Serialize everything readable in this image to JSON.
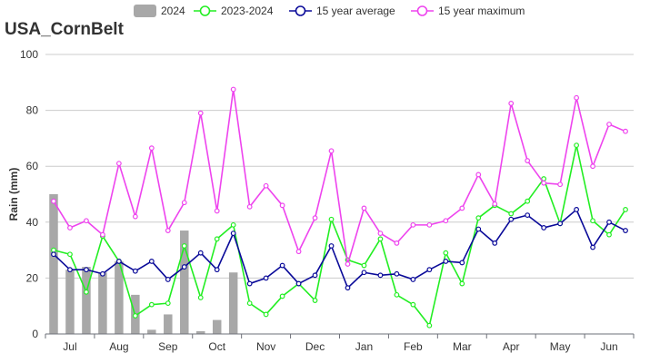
{
  "chart_data": {
    "type": "bar+line",
    "title": "USA_CornBelt",
    "ylabel": "Rain (mm)",
    "xlabel": "",
    "ylim": [
      0,
      100
    ],
    "yticks": [
      0,
      20,
      40,
      60,
      80,
      100
    ],
    "grid": true,
    "legend_position": "top",
    "month_labels": [
      "Jul",
      "Aug",
      "Sep",
      "Oct",
      "Nov",
      "Dec",
      "Jan",
      "Feb",
      "Mar",
      "Apr",
      "May",
      "Jun"
    ],
    "bar_series": {
      "name": "2024",
      "color": "#a8a8a8",
      "values": [
        50,
        23,
        24,
        22,
        26,
        14,
        1.5,
        7,
        37,
        1,
        5,
        22
      ]
    },
    "series": [
      {
        "name": "2023-2024",
        "color": "#22ee22",
        "values": [
          30,
          28.5,
          15,
          35,
          26,
          6.5,
          10.5,
          11,
          31.5,
          13,
          34,
          39,
          11,
          7,
          13.5,
          18,
          12,
          41,
          26.5,
          24.5,
          34,
          14,
          10.5,
          3,
          29,
          18,
          41.5,
          46,
          43,
          47.5,
          55.5,
          39.5,
          67.5,
          40.5,
          35.5,
          44.5
        ]
      },
      {
        "name": "15 year average",
        "color": "#0a0a99",
        "values": [
          28.5,
          23,
          23,
          21.5,
          26,
          22.5,
          26,
          19.5,
          24,
          29,
          23,
          36,
          18,
          20,
          24.5,
          18,
          21,
          31.5,
          16.5,
          22,
          21,
          21.5,
          19.5,
          23,
          26,
          25.5,
          37.5,
          32.5,
          41,
          42.5,
          38,
          39.5,
          44.5,
          31,
          40,
          37
        ]
      },
      {
        "name": "15 year maximum",
        "color": "#ee44ee",
        "values": [
          47.5,
          38,
          40.5,
          35.5,
          61,
          42,
          66.5,
          37,
          47,
          79,
          44,
          87.5,
          45.5,
          53,
          46,
          29.5,
          41.5,
          65.5,
          25,
          45,
          36,
          32.5,
          39,
          39,
          40.5,
          45,
          57,
          46.5,
          82.5,
          62,
          54,
          53.5,
          84.5,
          60,
          75,
          72.5
        ]
      }
    ]
  }
}
